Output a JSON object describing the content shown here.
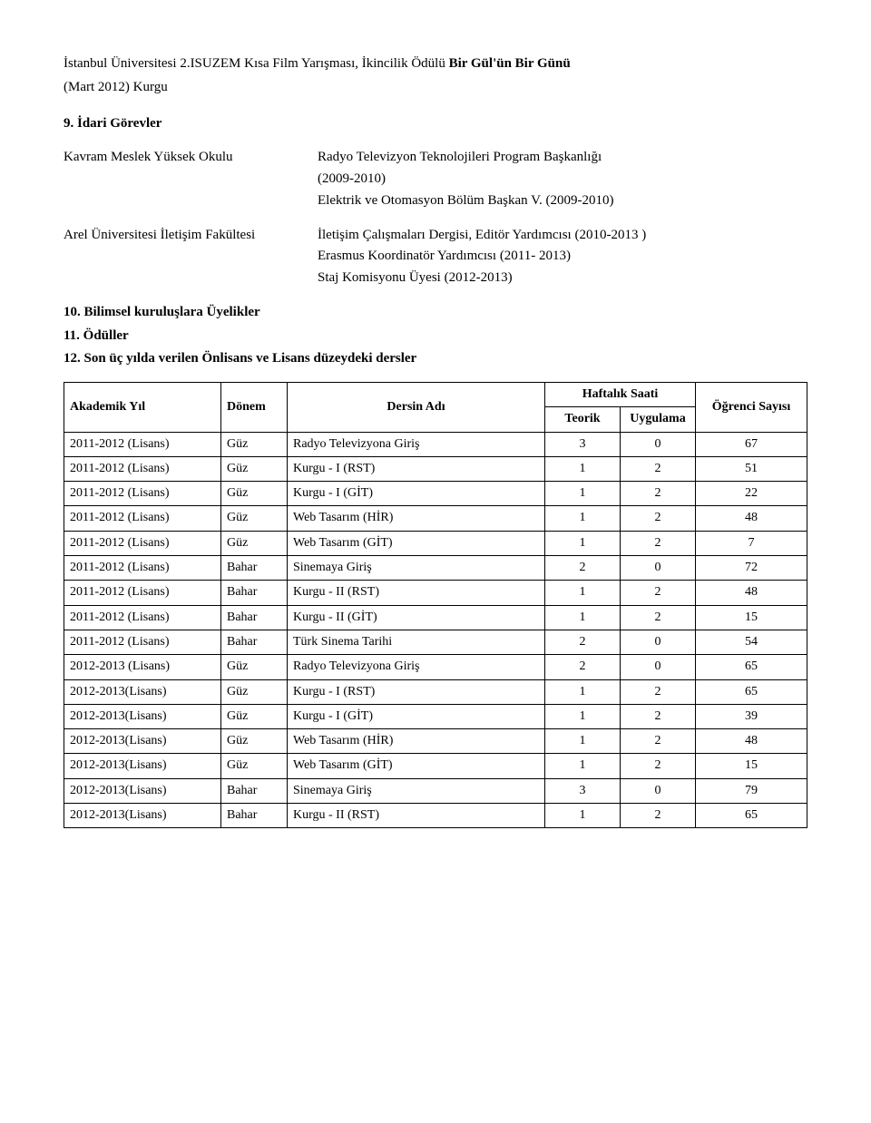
{
  "intro": {
    "award_prefix": "İstanbul Üniversitesi 2.ISUZEM Kısa Film Yarışması, İkincilik Ödülü ",
    "award_title": "Bir Gül'ün Bir Günü",
    "award_sub": "(Mart 2012) Kurgu"
  },
  "sections": {
    "s9": "9.   İdari Görevler",
    "s10": "10. Bilimsel kuruluşlara Üyelikler",
    "s11": "11. Ödüller",
    "s12": "12. Son üç yılda verilen Önlisans ve Lisans düzeydeki dersler"
  },
  "duties": [
    {
      "left": "Kavram Meslek Yüksek Okulu",
      "right": [
        "Radyo Televizyon Teknolojileri Program Başkanlığı",
        "(2009-2010)",
        "Elektrik ve Otomasyon Bölüm Başkan V. (2009-2010)"
      ]
    },
    {
      "left": "Arel Üniversitesi İletişim Fakültesi",
      "right": [
        "İletişim Çalışmaları Dergisi, Editör Yardımcısı (2010-2013 )",
        "Erasmus Koordinatör Yardımcısı (2011- 2013)",
        "Staj Komisyonu Üyesi (2012-2013)"
      ]
    }
  ],
  "table": {
    "headers": {
      "year": "Akademik Yıl",
      "term": "Dönem",
      "course": "Dersin Adı",
      "hours_group": "Haftalık Saati",
      "teorik": "Teorik",
      "uygulama": "Uygulama",
      "students": "Öğrenci Sayısı"
    },
    "rows": [
      {
        "year": "2011-2012 (Lisans)",
        "term": "Güz",
        "course": "Radyo Televizyona Giriş",
        "t": "3",
        "u": "0",
        "s": "67"
      },
      {
        "year": "2011-2012 (Lisans)",
        "term": "Güz",
        "course": "Kurgu - I  (RST)",
        "t": "1",
        "u": "2",
        "s": "51"
      },
      {
        "year": "2011-2012 (Lisans)",
        "term": "Güz",
        "course": "Kurgu - I  (GİT)",
        "t": "1",
        "u": "2",
        "s": "22"
      },
      {
        "year": "2011-2012 (Lisans)",
        "term": "Güz",
        "course": "Web Tasarım  (HİR)",
        "t": "1",
        "u": "2",
        "s": "48"
      },
      {
        "year": "2011-2012 (Lisans)",
        "term": "Güz",
        "course": "Web Tasarım  (GİT)",
        "t": "1",
        "u": "2",
        "s": "7"
      },
      {
        "year": "2011-2012 (Lisans)",
        "term": "Bahar",
        "course": "Sinemaya Giriş",
        "t": "2",
        "u": "0",
        "s": "72"
      },
      {
        "year": "2011-2012 (Lisans)",
        "term": "Bahar",
        "course": "Kurgu - II  (RST)",
        "t": "1",
        "u": "2",
        "s": "48"
      },
      {
        "year": "2011-2012 (Lisans)",
        "term": "Bahar",
        "course": "Kurgu - II  (GİT)",
        "t": "1",
        "u": "2",
        "s": "15"
      },
      {
        "year": "2011-2012 (Lisans)",
        "term": "Bahar",
        "course": "Türk Sinema Tarihi",
        "t": "2",
        "u": "0",
        "s": "54"
      },
      {
        "year": "2012-2013 (Lisans)",
        "term": "Güz",
        "course": "Radyo Televizyona Giriş",
        "t": "2",
        "u": "0",
        "s": "65"
      },
      {
        "year": "2012-2013(Lisans)",
        "term": "Güz",
        "course": "Kurgu - I  (RST)",
        "t": "1",
        "u": "2",
        "s": "65"
      },
      {
        "year": "2012-2013(Lisans)",
        "term": "Güz",
        "course": "Kurgu - I  (GİT)",
        "t": "1",
        "u": "2",
        "s": "39"
      },
      {
        "year": "2012-2013(Lisans)",
        "term": "Güz",
        "course": "Web Tasarım  (HİR)",
        "t": "1",
        "u": "2",
        "s": "48"
      },
      {
        "year": "2012-2013(Lisans)",
        "term": "Güz",
        "course": "Web Tasarım  (GİT)",
        "t": "1",
        "u": "2",
        "s": "15"
      },
      {
        "year": "2012-2013(Lisans)",
        "term": "Bahar",
        "course": "Sinemaya Giriş",
        "t": "3",
        "u": "0",
        "s": "79"
      },
      {
        "year": "2012-2013(Lisans)",
        "term": "Bahar",
        "course": "Kurgu - II  (RST)",
        "t": "1",
        "u": "2",
        "s": "65"
      }
    ]
  }
}
